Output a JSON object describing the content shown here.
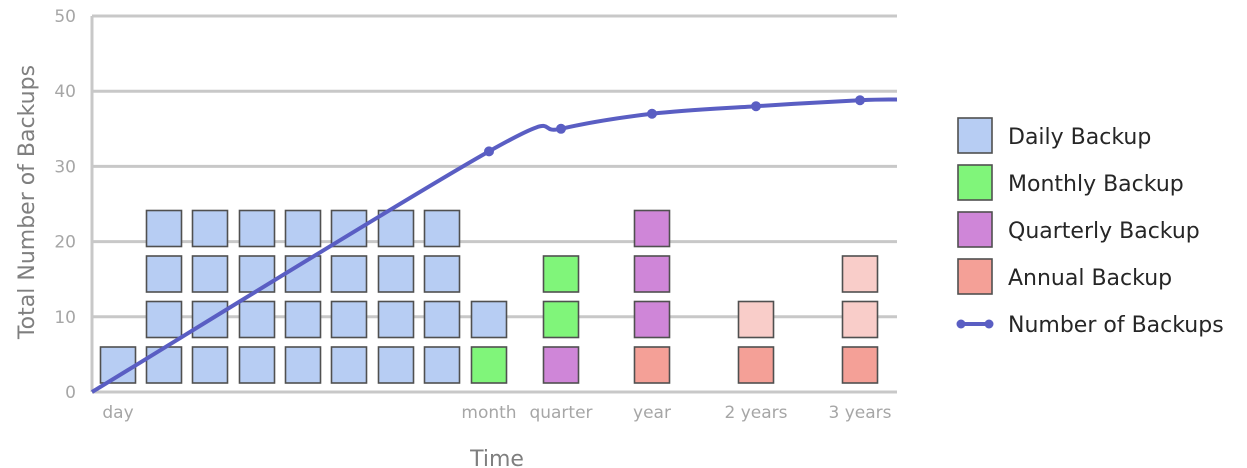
{
  "chart_data": {
    "type": "line",
    "title": "",
    "xlabel": "Time",
    "ylabel": "Total Number of Backups",
    "ylim": [
      0,
      50
    ],
    "y_ticks": [
      0,
      10,
      20,
      30,
      40,
      50
    ],
    "grid": true,
    "legend_position": "right",
    "x_tick_labels": [
      "day",
      "month",
      "quarter",
      "year",
      "2 years",
      "3 years"
    ],
    "colors": {
      "daily": "#b7cdf3",
      "monthly": "#80f57a",
      "quarterly": "#cf86d8",
      "annual": "#f4a097",
      "annual_faded": "#f9cdc9",
      "line": "#5a5ec3"
    },
    "legend": [
      {
        "key": "daily",
        "label": "Daily Backup"
      },
      {
        "key": "monthly",
        "label": "Monthly Backup"
      },
      {
        "key": "quarterly",
        "label": "Quarterly Backup"
      },
      {
        "key": "annual",
        "label": "Annual Backup"
      },
      {
        "key": "line",
        "label": "Number of Backups"
      }
    ],
    "series": [
      {
        "name": "Number of Backups",
        "points": [
          {
            "x": "month",
            "y": 32
          },
          {
            "x": "quarter",
            "y": 35
          },
          {
            "x": "year",
            "y": 37
          },
          {
            "x": "2 years",
            "y": 38
          },
          {
            "x": "3 years",
            "y": 38.8
          }
        ]
      }
    ],
    "stacks": [
      {
        "x": "day",
        "cells": [
          "daily"
        ]
      },
      {
        "x": "",
        "cells": [
          "daily",
          "daily",
          "daily",
          "daily"
        ]
      },
      {
        "x": "",
        "cells": [
          "daily",
          "daily",
          "daily",
          "daily"
        ]
      },
      {
        "x": "",
        "cells": [
          "daily",
          "daily",
          "daily",
          "daily"
        ]
      },
      {
        "x": "",
        "cells": [
          "daily",
          "daily",
          "daily",
          "daily"
        ]
      },
      {
        "x": "",
        "cells": [
          "daily",
          "daily",
          "daily",
          "daily"
        ]
      },
      {
        "x": "",
        "cells": [
          "daily",
          "daily",
          "daily",
          "daily"
        ]
      },
      {
        "x": "",
        "cells": [
          "daily",
          "daily",
          "daily",
          "daily"
        ]
      },
      {
        "x": "month",
        "cells": [
          "monthly",
          "daily"
        ]
      },
      {
        "x": "quarter",
        "cells": [
          "quarterly",
          "monthly",
          "monthly"
        ]
      },
      {
        "x": "year",
        "cells": [
          "annual",
          "quarterly",
          "quarterly",
          "quarterly"
        ]
      },
      {
        "x": "2 years",
        "cells": [
          "annual",
          "annual_faded"
        ]
      },
      {
        "x": "3 years",
        "cells": [
          "annual",
          "annual_faded",
          "annual_faded"
        ]
      }
    ]
  }
}
